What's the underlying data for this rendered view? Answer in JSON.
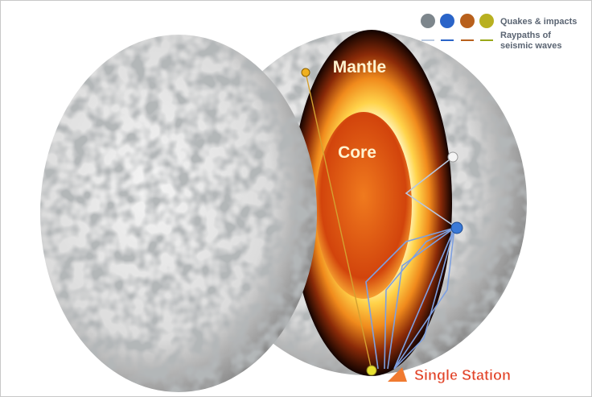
{
  "legend": {
    "quakes": "Quakes & impacts",
    "raypaths": [
      "Raypaths of",
      "seismic waves"
    ]
  },
  "labels": {
    "mantle": "Mantle",
    "core": "Core",
    "station": "Single Station"
  }
}
